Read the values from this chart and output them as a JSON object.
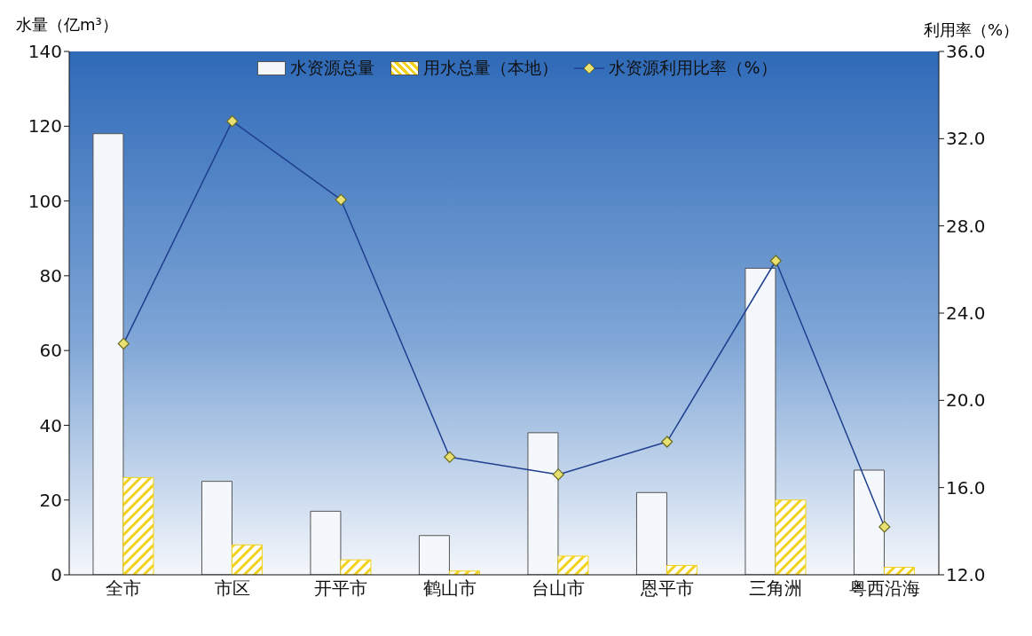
{
  "chart_data": {
    "type": "bar",
    "ylabel": "水量（亿m³）",
    "y2label": "利用率（%）",
    "categories": [
      "全市",
      "市区",
      "开平市",
      "鹤山市",
      "台山市",
      "恩平市",
      "三角洲",
      "粤西沿海"
    ],
    "series": [
      {
        "name": "水资源总量",
        "color": "#f4f8fc",
        "values": [
          118,
          25,
          17,
          10.5,
          38,
          22,
          82,
          28
        ]
      },
      {
        "name": "用水总量（本地）",
        "color": "#f2d21c",
        "values": [
          26,
          8,
          4,
          1,
          5,
          2.5,
          20,
          2
        ]
      },
      {
        "name": "水资源利用比率（%）",
        "type": "line",
        "axis": "y2",
        "color": "#1f3f8f",
        "marker": "diamond",
        "values": [
          22.6,
          32.8,
          29.2,
          17.4,
          16.6,
          18.1,
          26.4,
          14.2
        ]
      }
    ],
    "ylim": [
      0,
      140
    ],
    "yticks": [
      0,
      20,
      40,
      60,
      80,
      100,
      120,
      140
    ],
    "y2lim": [
      12,
      36
    ],
    "y2ticks": [
      {
        "value": 12,
        "label": "12.0"
      },
      {
        "value": 16,
        "label": "16.0"
      },
      {
        "value": 20,
        "label": "20.0"
      },
      {
        "value": 24,
        "label": "24.0"
      },
      {
        "value": 28,
        "label": "28.0"
      },
      {
        "value": 32,
        "label": "32.0"
      },
      {
        "value": 36,
        "label": "36.0"
      }
    ],
    "legend": "top"
  }
}
